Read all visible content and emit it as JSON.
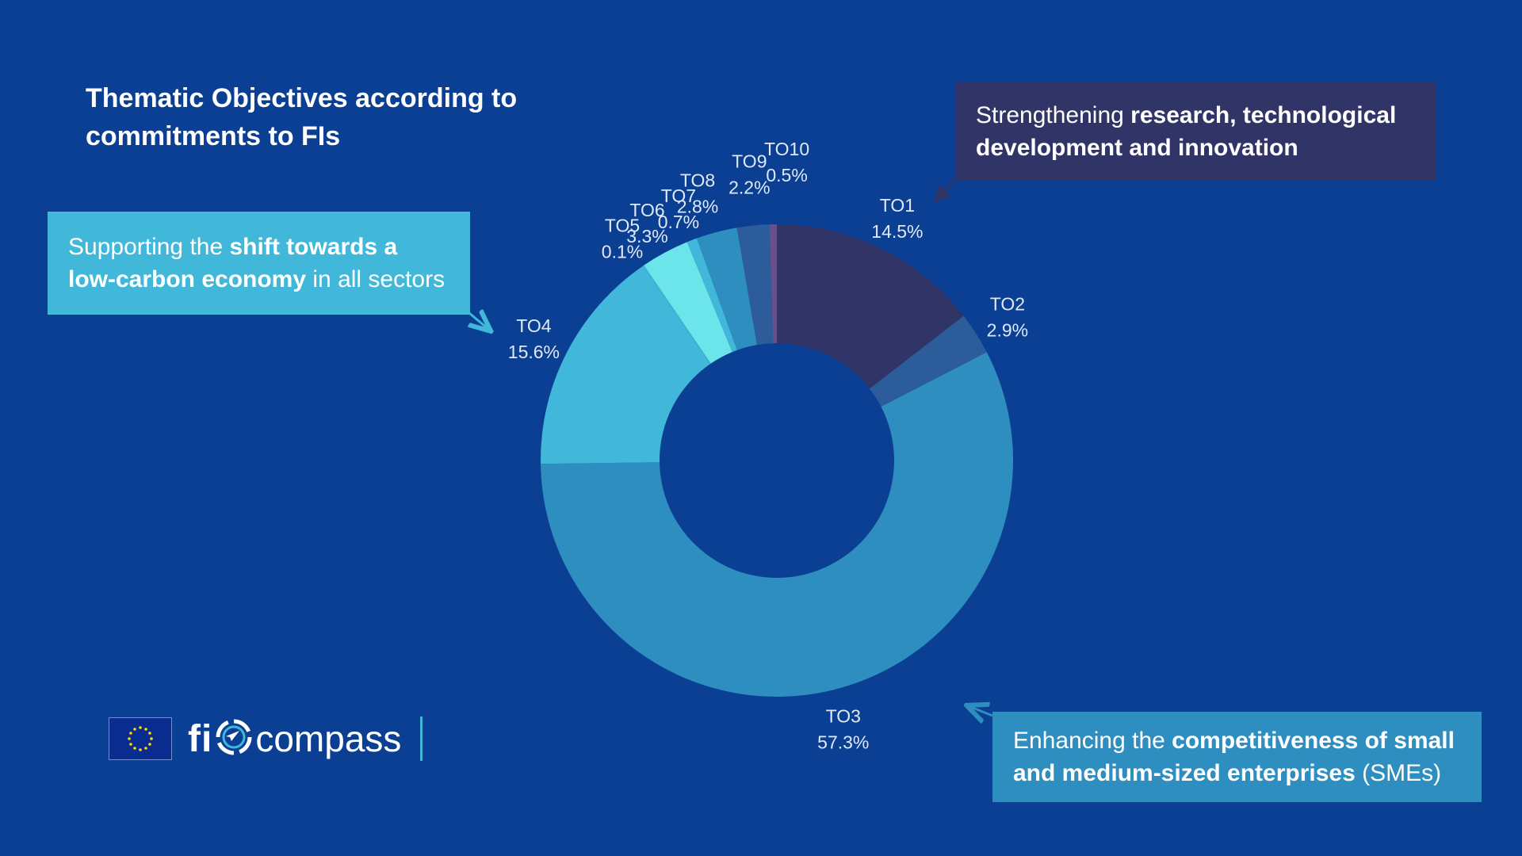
{
  "title": "Thematic Objectives according to commitments to FIs",
  "callouts": {
    "research": {
      "pre": "Strengthening ",
      "bold": "research, technological development and innovation",
      "post": ""
    },
    "lowcarbon": {
      "pre": "Supporting the ",
      "bold": "shift towards a low-carbon economy",
      "post": " in all sectors"
    },
    "sme": {
      "pre": "Enhancing the ",
      "bold": "competitiveness of small and medium-sized enterprises",
      "post": " (SMEs)"
    }
  },
  "chart_data": {
    "type": "pie",
    "variant": "donut",
    "title": "Thematic Objectives according to commitments to FIs",
    "categories": [
      "TO1",
      "TO2",
      "TO3",
      "TO4",
      "TO5",
      "TO6",
      "TO7",
      "TO8",
      "TO9",
      "TO10"
    ],
    "values": [
      14.5,
      2.9,
      57.3,
      15.6,
      0.1,
      3.3,
      0.7,
      2.8,
      2.2,
      0.5
    ],
    "value_labels": [
      "14.5%",
      "2.9%",
      "57.3%",
      "15.6%",
      "0.1%",
      "3.3%",
      "0.7%",
      "2.8%",
      "2.2%",
      "0.5%"
    ],
    "colors": [
      "#313466",
      "#2d5c9b",
      "#2d8ebf",
      "#41b8d9",
      "#41b8d9",
      "#6be5e9",
      "#41b8d9",
      "#2d8ebf",
      "#2d5c9b",
      "#6b4f8c"
    ]
  },
  "brand": {
    "fi": "fi",
    "compass": "compass",
    "icon": "compass-icon",
    "flag_icon": "eu-flag-icon"
  },
  "colors": {
    "background": "#0b3f93",
    "accent": "#41b8d9"
  }
}
